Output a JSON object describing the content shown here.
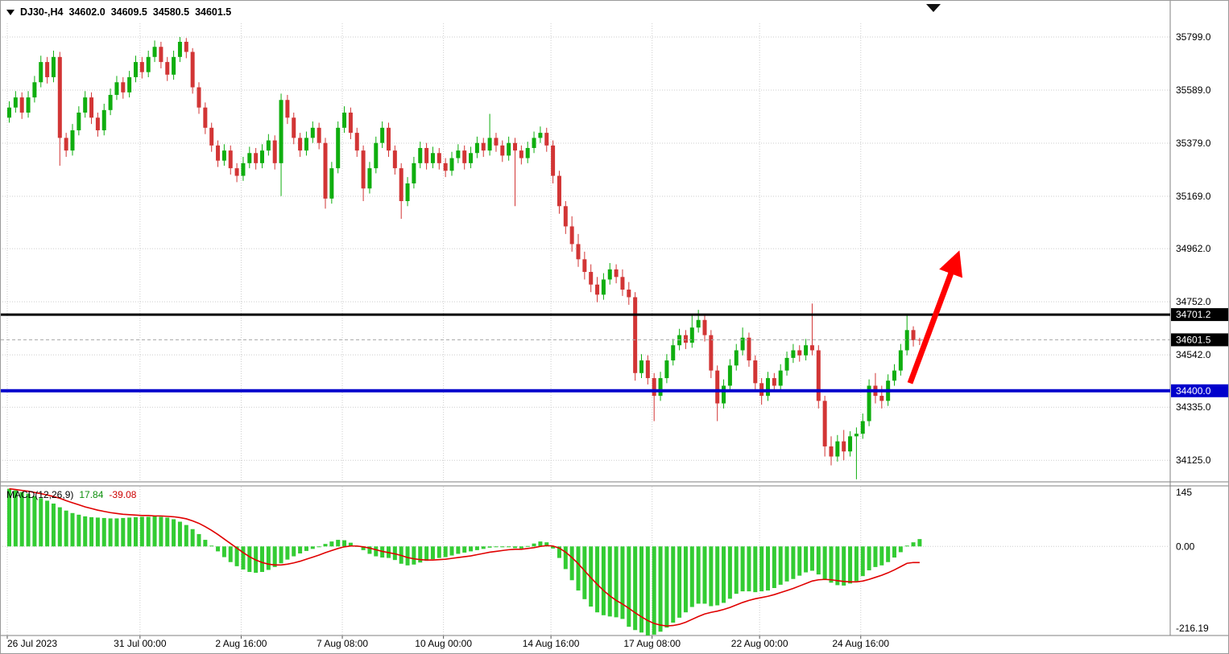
{
  "header": {
    "symbol": "DJ30-,H4",
    "open": "34602.0",
    "high": "34609.5",
    "low": "34580.5",
    "close": "34601.5"
  },
  "indicator": {
    "name": "MACD(12,26,9)",
    "main": "17.84",
    "signal": "-39.08"
  },
  "colors": {
    "bull": "#0fae0f",
    "bear": "#d23535",
    "histogram": "#33cc33",
    "signal": "#e00000",
    "resistance": "#000000",
    "support": "#0000cc",
    "current": "#a8a8a8",
    "arrow": "#ff0000",
    "grid": "#cdcdcd",
    "axis_text": "#000000",
    "frame": "#808080"
  },
  "chart_data": [
    {
      "type": "candlestick",
      "title": "DJ30- H4",
      "ylim": [
        34043,
        35853
      ],
      "y_ticks": [
        35799.0,
        35589.0,
        35379.0,
        35169.0,
        34962.0,
        34752.0,
        34542.0,
        34335.0,
        34125.0
      ],
      "x_ticks": [
        {
          "label": "26 Jul 2023",
          "index": 0
        },
        {
          "label": "31 Jul 00:00",
          "index": 21
        },
        {
          "label": "2 Aug 16:00",
          "index": 37
        },
        {
          "label": "7 Aug 08:00",
          "index": 53
        },
        {
          "label": "10 Aug 00:00",
          "index": 69
        },
        {
          "label": "14 Aug 16:00",
          "index": 86
        },
        {
          "label": "17 Aug 08:00",
          "index": 102
        },
        {
          "label": "22 Aug 00:00",
          "index": 119
        },
        {
          "label": "24 Aug 16:00",
          "index": 135
        }
      ],
      "levels": [
        {
          "name": "resistance",
          "value": 34701.2,
          "label": "34701.2",
          "line_color": "#000000",
          "label_bg": "#000000",
          "width": 3,
          "style": "solid"
        },
        {
          "name": "current-price",
          "value": 34601.5,
          "label": "34601.5",
          "line_color": "#a8a8a8",
          "label_bg": "#000000",
          "width": 1,
          "style": "dashed"
        },
        {
          "name": "support",
          "value": 34400.0,
          "label": "34400.0",
          "line_color": "#0000cc",
          "label_bg": "#0000cc",
          "width": 4,
          "style": "solid"
        }
      ],
      "annotations": [
        {
          "type": "arrow",
          "color": "#ff0000",
          "width": 7,
          "from": {
            "index": 142.8,
            "price": 34430
          },
          "to": {
            "index": 149.5,
            "price": 34880
          }
        }
      ],
      "candles": [
        [
          35480,
          35545,
          35460,
          35520
        ],
        [
          35520,
          35585,
          35500,
          35560
        ],
        [
          35560,
          35580,
          35475,
          35500
        ],
        [
          35500,
          35585,
          35480,
          35560
        ],
        [
          35560,
          35645,
          35540,
          35620
        ],
        [
          35620,
          35725,
          35600,
          35700
        ],
        [
          35700,
          35720,
          35615,
          35640
        ],
        [
          35640,
          35745,
          35620,
          35720
        ],
        [
          35720,
          35740,
          35290,
          35400
        ],
        [
          35400,
          35420,
          35325,
          35350
        ],
        [
          35350,
          35455,
          35330,
          35430
        ],
        [
          35430,
          35525,
          35410,
          35500
        ],
        [
          35500,
          35585,
          35480,
          35560
        ],
        [
          35560,
          35580,
          35455,
          35480
        ],
        [
          35480,
          35500,
          35405,
          35430
        ],
        [
          35430,
          35535,
          35410,
          35510
        ],
        [
          35510,
          35595,
          35490,
          35570
        ],
        [
          35570,
          35645,
          35550,
          35620
        ],
        [
          35620,
          35640,
          35555,
          35580
        ],
        [
          35580,
          35665,
          35560,
          35640
        ],
        [
          35640,
          35725,
          35620,
          35700
        ],
        [
          35700,
          35720,
          35635,
          35660
        ],
        [
          35660,
          35745,
          35640,
          35720
        ],
        [
          35720,
          35785,
          35700,
          35760
        ],
        [
          35760,
          35780,
          35675,
          35700
        ],
        [
          35700,
          35720,
          35625,
          35650
        ],
        [
          35650,
          35745,
          35630,
          35720
        ],
        [
          35720,
          35799,
          35700,
          35780
        ],
        [
          35780,
          35795,
          35715,
          35740
        ],
        [
          35740,
          35755,
          35575,
          35600
        ],
        [
          35600,
          35620,
          35495,
          35520
        ],
        [
          35520,
          35540,
          35415,
          35440
        ],
        [
          35440,
          35460,
          35345,
          35370
        ],
        [
          35370,
          35390,
          35285,
          35310
        ],
        [
          35310,
          35375,
          35290,
          35350
        ],
        [
          35350,
          35370,
          35255,
          35280
        ],
        [
          35280,
          35300,
          35225,
          35250
        ],
        [
          35250,
          35325,
          35230,
          35300
        ],
        [
          35300,
          35365,
          35280,
          35340
        ],
        [
          35340,
          35360,
          35275,
          35300
        ],
        [
          35300,
          35375,
          35280,
          35350
        ],
        [
          35350,
          35415,
          35330,
          35390
        ],
        [
          35390,
          35410,
          35275,
          35300
        ],
        [
          35300,
          35575,
          35170,
          35550
        ],
        [
          35550,
          35570,
          35455,
          35480
        ],
        [
          35480,
          35500,
          35375,
          35400
        ],
        [
          35400,
          35420,
          35325,
          35350
        ],
        [
          35350,
          35425,
          35330,
          35400
        ],
        [
          35400,
          35465,
          35380,
          35440
        ],
        [
          35440,
          35460,
          35355,
          35380
        ],
        [
          35380,
          35400,
          35120,
          35160
        ],
        [
          35160,
          35305,
          35140,
          35280
        ],
        [
          35280,
          35465,
          35260,
          35440
        ],
        [
          35440,
          35525,
          35420,
          35500
        ],
        [
          35500,
          35520,
          35395,
          35420
        ],
        [
          35420,
          35440,
          35325,
          35350
        ],
        [
          35350,
          35370,
          35150,
          35200
        ],
        [
          35200,
          35305,
          35180,
          35280
        ],
        [
          35280,
          35405,
          35260,
          35380
        ],
        [
          35380,
          35465,
          35360,
          35440
        ],
        [
          35440,
          35460,
          35325,
          35350
        ],
        [
          35350,
          35370,
          35255,
          35280
        ],
        [
          35280,
          35300,
          35080,
          35150
        ],
        [
          35150,
          35245,
          35130,
          35220
        ],
        [
          35220,
          35325,
          35200,
          35300
        ],
        [
          35300,
          35385,
          35280,
          35360
        ],
        [
          35360,
          35380,
          35275,
          35300
        ],
        [
          35300,
          35365,
          35280,
          35340
        ],
        [
          35340,
          35360,
          35275,
          35300
        ],
        [
          35300,
          35320,
          35245,
          35270
        ],
        [
          35270,
          35345,
          35250,
          35320
        ],
        [
          35320,
          35375,
          35300,
          35350
        ],
        [
          35350,
          35370,
          35275,
          35300
        ],
        [
          35300,
          35365,
          35280,
          35340
        ],
        [
          35340,
          35405,
          35320,
          35380
        ],
        [
          35380,
          35400,
          35325,
          35350
        ],
        [
          35350,
          35495,
          35330,
          35400
        ],
        [
          35400,
          35420,
          35345,
          35370
        ],
        [
          35370,
          35390,
          35305,
          35330
        ],
        [
          35330,
          35405,
          35310,
          35380
        ],
        [
          35380,
          35400,
          35130,
          35350
        ],
        [
          35350,
          35370,
          35295,
          35320
        ],
        [
          35320,
          35385,
          35300,
          35360
        ],
        [
          35360,
          35425,
          35340,
          35400
        ],
        [
          35400,
          35445,
          35380,
          35420
        ],
        [
          35420,
          35440,
          35345,
          35370
        ],
        [
          35370,
          35390,
          35220,
          35250
        ],
        [
          35250,
          35270,
          35100,
          35130
        ],
        [
          35130,
          35150,
          35020,
          35050
        ],
        [
          35050,
          35090,
          34950,
          34980
        ],
        [
          34980,
          35020,
          34890,
          34920
        ],
        [
          34920,
          34950,
          34840,
          34870
        ],
        [
          34870,
          34900,
          34790,
          34820
        ],
        [
          34820,
          34850,
          34750,
          34780
        ],
        [
          34780,
          34865,
          34760,
          34840
        ],
        [
          34840,
          34905,
          34820,
          34880
        ],
        [
          34880,
          34900,
          34825,
          34850
        ],
        [
          34850,
          34880,
          34775,
          34800
        ],
        [
          34800,
          34830,
          34740,
          34770
        ],
        [
          34770,
          34790,
          34440,
          34470
        ],
        [
          34470,
          34545,
          34450,
          34520
        ],
        [
          34520,
          34540,
          34425,
          34450
        ],
        [
          34450,
          34470,
          34280,
          34380
        ],
        [
          34380,
          34475,
          34360,
          34450
        ],
        [
          34450,
          34545,
          34430,
          34520
        ],
        [
          34520,
          34605,
          34500,
          34580
        ],
        [
          34580,
          34645,
          34560,
          34620
        ],
        [
          34620,
          34640,
          34565,
          34590
        ],
        [
          34590,
          34700,
          34570,
          34650
        ],
        [
          34650,
          34720,
          34630,
          34680
        ],
        [
          34680,
          34700,
          34595,
          34620
        ],
        [
          34620,
          34640,
          34450,
          34480
        ],
        [
          34480,
          34500,
          34280,
          34350
        ],
        [
          34350,
          34445,
          34330,
          34420
        ],
        [
          34420,
          34525,
          34400,
          34500
        ],
        [
          34500,
          34585,
          34480,
          34560
        ],
        [
          34560,
          34650,
          34540,
          34610
        ],
        [
          34610,
          34630,
          34495,
          34520
        ],
        [
          34520,
          34540,
          34405,
          34430
        ],
        [
          34430,
          34450,
          34345,
          34380
        ],
        [
          34380,
          34475,
          34360,
          34450
        ],
        [
          34450,
          34470,
          34395,
          34420
        ],
        [
          34420,
          34505,
          34400,
          34480
        ],
        [
          34480,
          34555,
          34460,
          34530
        ],
        [
          34530,
          34585,
          34510,
          34560
        ],
        [
          34560,
          34580,
          34515,
          34540
        ],
        [
          34540,
          34605,
          34520,
          34580
        ],
        [
          34580,
          34745,
          34540,
          34560
        ],
        [
          34560,
          34580,
          34330,
          34360
        ],
        [
          34360,
          34380,
          34140,
          34180
        ],
        [
          34180,
          34220,
          34105,
          34140
        ],
        [
          34140,
          34225,
          34120,
          34200
        ],
        [
          34200,
          34245,
          34125,
          34160
        ],
        [
          34160,
          34240,
          34140,
          34220
        ],
        [
          34220,
          34255,
          34050,
          34230
        ],
        [
          34230,
          34310,
          34210,
          34280
        ],
        [
          34280,
          34445,
          34260,
          34420
        ],
        [
          34420,
          34470,
          34350,
          34380
        ],
        [
          34380,
          34420,
          34330,
          34360
        ],
        [
          34360,
          34465,
          34340,
          34440
        ],
        [
          34440,
          34505,
          34420,
          34480
        ],
        [
          34480,
          34585,
          34460,
          34560
        ],
        [
          34560,
          34700,
          34540,
          34640
        ],
        [
          34640,
          34655,
          34575,
          34600
        ],
        [
          34602,
          34609.5,
          34580.5,
          34601.5
        ]
      ]
    },
    {
      "type": "bar",
      "name": "MACD(12,26,9)",
      "ylim": [
        -216.19,
        145
      ],
      "y_ticks": [
        {
          "label": "145",
          "value": 145
        },
        {
          "label": "0.00",
          "value": 0
        },
        {
          "label": "-216.19",
          "value": -216.19
        }
      ],
      "values": [
        140,
        136,
        132,
        128,
        122,
        117,
        111,
        104,
        95,
        87,
        81,
        77,
        73,
        71,
        70,
        69,
        68,
        68,
        69,
        70,
        71,
        72,
        72,
        73,
        72,
        70,
        66,
        60,
        52,
        42,
        30,
        16,
        2,
        -12,
        -26,
        -38,
        -48,
        -56,
        -62,
        -64,
        -62,
        -57,
        -50,
        -41,
        -32,
        -24,
        -17,
        -11,
        -6,
        -1,
        6,
        12,
        16,
        15,
        9,
        1,
        -9,
        -18,
        -24,
        -27,
        -28,
        -33,
        -42,
        -46,
        -44,
        -39,
        -35,
        -31,
        -28,
        -26,
        -22,
        -18,
        -15,
        -12,
        -9,
        -6,
        -3,
        -1,
        -2,
        -1,
        -4,
        -5,
        1,
        7,
        12,
        10,
        -5,
        -28,
        -55,
        -82,
        -107,
        -128,
        -146,
        -160,
        -167,
        -170,
        -172,
        -176,
        -195,
        -203,
        -209,
        -216,
        -214,
        -207,
        -197,
        -185,
        -173,
        -160,
        -147,
        -139,
        -139,
        -145,
        -143,
        -137,
        -127,
        -115,
        -109,
        -109,
        -111,
        -109,
        -107,
        -101,
        -93,
        -85,
        -79,
        -71,
        -63,
        -59,
        -68,
        -80,
        -88,
        -94,
        -95,
        -90,
        -84,
        -72,
        -58,
        -50,
        -46,
        -38,
        -27,
        -14,
        2,
        10,
        17.84
      ],
      "signal": [
        140,
        138,
        136,
        134,
        131,
        128,
        125,
        121,
        117,
        111,
        106,
        101,
        96,
        92,
        88,
        85,
        82,
        80,
        78,
        77,
        76,
        75,
        75,
        74,
        74,
        73,
        72,
        70,
        67,
        62,
        56,
        48,
        39,
        29,
        18,
        7,
        -4,
        -15,
        -25,
        -33,
        -39,
        -43,
        -45,
        -45,
        -43,
        -40,
        -36,
        -31,
        -26,
        -21,
        -15,
        -10,
        -5,
        -1,
        1,
        1,
        -1,
        -4,
        -8,
        -12,
        -15,
        -18,
        -22,
        -27,
        -30,
        -32,
        -33,
        -33,
        -32,
        -31,
        -29,
        -27,
        -25,
        -23,
        -20,
        -17,
        -14,
        -12,
        -10,
        -8,
        -7,
        -7,
        -5,
        -3,
        0,
        2,
        1,
        -4,
        -14,
        -27,
        -42,
        -59,
        -76,
        -92,
        -107,
        -120,
        -131,
        -140,
        -150,
        -161,
        -171,
        -180,
        -187,
        -191,
        -193,
        -192,
        -189,
        -184,
        -177,
        -170,
        -164,
        -160,
        -157,
        -153,
        -148,
        -142,
        -136,
        -131,
        -127,
        -124,
        -121,
        -117,
        -112,
        -107,
        -102,
        -96,
        -90,
        -84,
        -81,
        -80,
        -81,
        -83,
        -85,
        -86,
        -86,
        -84,
        -80,
        -75,
        -70,
        -64,
        -57,
        -49,
        -41,
        -39,
        -39.08
      ]
    }
  ]
}
